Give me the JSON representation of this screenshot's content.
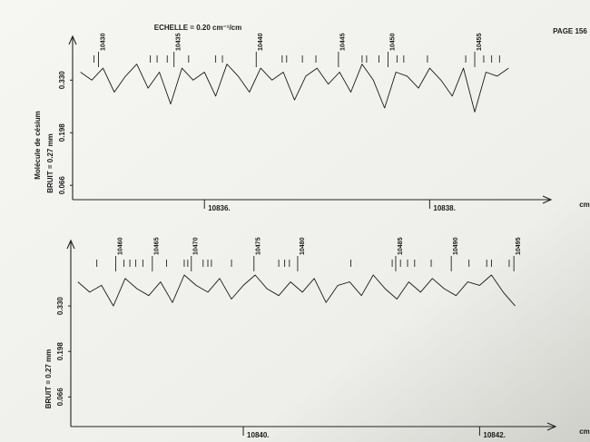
{
  "page": "PAGE 156",
  "scale": "ECHELLE = 0.20 cm⁻¹/cm",
  "chart_data": [
    {
      "type": "line",
      "subtitle": "Molécule de césium",
      "noise": "BRUIT = 0.27 mm",
      "xlabel": "cm",
      "xlim": [
        10834.83,
        10838.98
      ],
      "ylim": [
        0.03,
        0.44
      ],
      "xticks": [
        {
          "value": 10836,
          "label": "10836."
        },
        {
          "value": 10838,
          "label": "10838."
        }
      ],
      "yticks": [
        {
          "value": 0.066,
          "label": "0.066"
        },
        {
          "value": 0.198,
          "label": "0.198"
        },
        {
          "value": 0.33,
          "label": "0.330"
        }
      ],
      "x": [
        10834.9,
        10835.0,
        10835.1,
        10835.2,
        10835.3,
        10835.4,
        10835.5,
        10835.6,
        10835.7,
        10835.8,
        10835.9,
        10836.0,
        10836.1,
        10836.2,
        10836.3,
        10836.4,
        10836.5,
        10836.6,
        10836.7,
        10836.8,
        10836.9,
        10837.0,
        10837.1,
        10837.2,
        10837.3,
        10837.4,
        10837.5,
        10837.6,
        10837.7,
        10837.8,
        10837.9,
        10838.0,
        10838.1,
        10838.2,
        10838.3,
        10838.4,
        10838.5,
        10838.6,
        10838.7
      ],
      "series": [
        {
          "color": "#1a1a1a",
          "values": [
            0.35,
            0.33,
            0.36,
            0.3,
            0.34,
            0.37,
            0.31,
            0.35,
            0.27,
            0.36,
            0.33,
            0.35,
            0.29,
            0.37,
            0.34,
            0.3,
            0.36,
            0.33,
            0.35,
            0.28,
            0.34,
            0.36,
            0.32,
            0.35,
            0.3,
            0.37,
            0.33,
            0.26,
            0.35,
            0.34,
            0.31,
            0.36,
            0.33,
            0.29,
            0.36,
            0.25,
            0.35,
            0.34,
            0.36
          ]
        }
      ],
      "annotations": [
        {
          "x": 10835.06,
          "text": "10430"
        },
        {
          "x": 10835.73,
          "text": "10435"
        },
        {
          "x": 10836.46,
          "text": "10440"
        },
        {
          "x": 10837.19,
          "text": "10445"
        },
        {
          "x": 10837.63,
          "text": "10450"
        },
        {
          "x": 10838.4,
          "text": "10455"
        }
      ],
      "markers": [
        10835.02,
        10835.52,
        10835.58,
        10835.67,
        10835.86,
        10836.1,
        10836.16,
        10836.69,
        10836.73,
        10836.87,
        10836.99,
        10837.4,
        10837.44,
        10837.55,
        10837.71,
        10837.77,
        10837.98,
        10838.32,
        10838.48,
        10838.55,
        10838.62
      ]
    },
    {
      "type": "line",
      "noise": "BRUIT = 0.27 mm",
      "xlabel": "cm",
      "xlim": [
        10838.54,
        10842.55
      ],
      "ylim": [
        -0.02,
        0.52
      ],
      "xticks": [
        {
          "value": 10840,
          "label": "10840."
        },
        {
          "value": 10842,
          "label": "10842."
        }
      ],
      "yticks": [
        {
          "value": 0.066,
          "label": "0.066"
        },
        {
          "value": 0.198,
          "label": "0.198"
        },
        {
          "value": 0.33,
          "label": "0.330"
        }
      ],
      "x": [
        10838.6,
        10838.7,
        10838.8,
        10838.9,
        10839.0,
        10839.1,
        10839.2,
        10839.3,
        10839.4,
        10839.5,
        10839.6,
        10839.7,
        10839.8,
        10839.9,
        10840.0,
        10840.1,
        10840.2,
        10840.3,
        10840.4,
        10840.5,
        10840.6,
        10840.7,
        10840.8,
        10840.9,
        10841.0,
        10841.1,
        10841.2,
        10841.3,
        10841.4,
        10841.5,
        10841.6,
        10841.7,
        10841.8,
        10841.9,
        10842.0,
        10842.1,
        10842.2,
        10842.3
      ],
      "series": [
        {
          "color": "#1a1a1a",
          "values": [
            0.4,
            0.37,
            0.39,
            0.33,
            0.41,
            0.38,
            0.36,
            0.4,
            0.34,
            0.42,
            0.39,
            0.37,
            0.41,
            0.35,
            0.39,
            0.42,
            0.38,
            0.36,
            0.4,
            0.37,
            0.41,
            0.34,
            0.39,
            0.4,
            0.36,
            0.42,
            0.38,
            0.35,
            0.4,
            0.37,
            0.41,
            0.38,
            0.36,
            0.4,
            0.39,
            0.42,
            0.37,
            0.33
          ]
        }
      ],
      "annotations": [
        {
          "x": 10838.92,
          "text": "10460"
        },
        {
          "x": 10839.23,
          "text": "10465"
        },
        {
          "x": 10839.56,
          "text": "10470"
        },
        {
          "x": 10840.09,
          "text": "10475"
        },
        {
          "x": 10840.46,
          "text": "10480"
        },
        {
          "x": 10841.29,
          "text": "10485"
        },
        {
          "x": 10841.76,
          "text": "10490"
        },
        {
          "x": 10842.29,
          "text": "10495"
        }
      ],
      "markers": [
        10838.76,
        10838.99,
        10839.04,
        10839.09,
        10839.15,
        10839.35,
        10839.5,
        10839.53,
        10839.66,
        10839.7,
        10839.73,
        10839.9,
        10840.3,
        10840.35,
        10840.39,
        10840.91,
        10841.26,
        10841.33,
        10841.39,
        10841.45,
        10841.59,
        10841.91,
        10842.06,
        10842.1,
        10842.25
      ]
    }
  ]
}
